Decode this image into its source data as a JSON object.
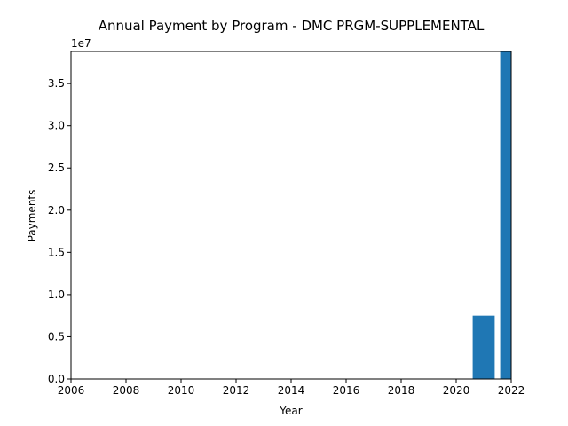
{
  "chart_data": {
    "type": "bar",
    "title": "Annual Payment by Program - DMC PRGM-SUPPLEMENTAL",
    "xlabel": "Year",
    "ylabel": "Payments",
    "y_offset_label": "1e7",
    "x": [
      2021,
      2022
    ],
    "values": [
      7500000,
      38800000
    ],
    "xlim": [
      2006,
      2022
    ],
    "ylim": [
      0,
      38800000
    ],
    "x_ticks": [
      "2006",
      "2008",
      "2010",
      "2012",
      "2014",
      "2016",
      "2018",
      "2020",
      "2022"
    ],
    "y_ticks": [
      "0.0",
      "0.5",
      "1.0",
      "1.5",
      "2.0",
      "2.5",
      "3.0",
      "3.5"
    ],
    "bar_color": "#1f77b4",
    "grid": false
  }
}
